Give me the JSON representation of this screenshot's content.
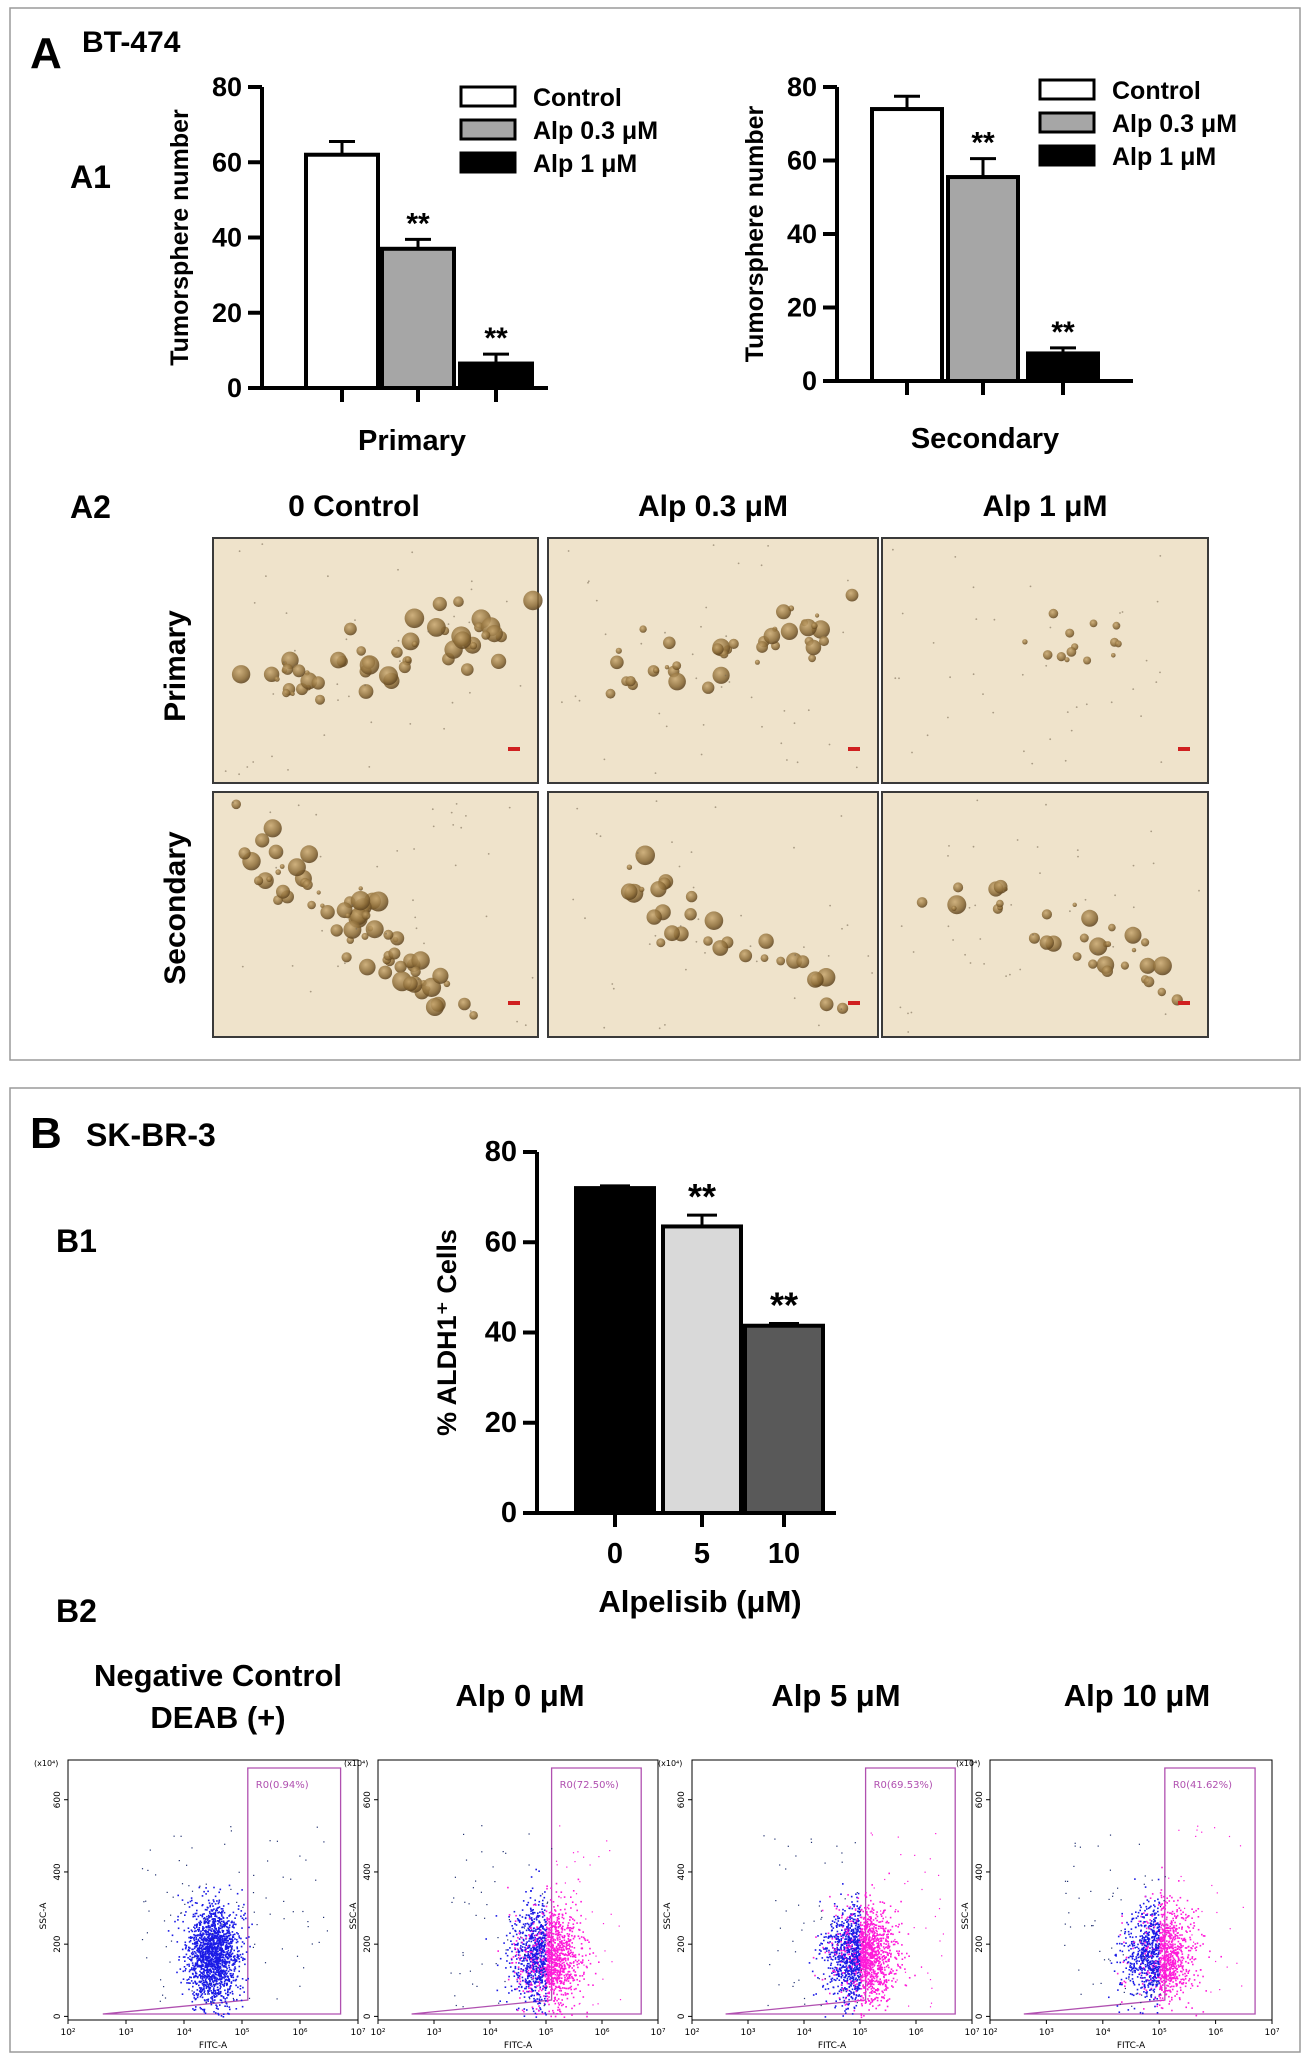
{
  "panel_a": {
    "letter": "A",
    "cell_line": "BT-474",
    "a1_label": "A1",
    "a2_label": "A2",
    "a2_columns": [
      "0 Control",
      "Alp 0.3 μM",
      "Alp 1 μM"
    ],
    "a2_rows": [
      "Primary",
      "Secondary"
    ]
  },
  "panel_b": {
    "letter": "B",
    "cell_line": "SK-BR-3",
    "b1_label": "B1",
    "b2_label": "B2",
    "b2_titles": [
      [
        "Negative Control",
        "DEAB (+)"
      ],
      [
        "Alp 0 μM"
      ],
      [
        "Alp 5 μM"
      ],
      [
        "Alp 10 μM"
      ]
    ],
    "flow_gates": [
      "R0(0.94%)",
      "R0(72.50%)",
      "R0(69.53%)",
      "R0(41.62%)"
    ],
    "flow_axis": {
      "xlabel": "FITC-A",
      "ylabel": "SSC-A",
      "x_ticks": [
        "10²",
        "10³",
        "10⁴",
        "10⁵",
        "10⁶",
        "10⁷"
      ],
      "y_ticks": [
        "0",
        "200",
        "400",
        "600"
      ],
      "y_mult": "(x10⁴)"
    }
  },
  "colors": {
    "control": "#ffffff",
    "alp03": "#a6a6a6",
    "alp1": "#000000",
    "b_0": "#000000",
    "b_5": "#d9d9d9",
    "b_10": "#595959",
    "flow_blue": "#1a1ae6",
    "flow_magenta": "#ff1ad9",
    "gate": "#b050b0",
    "micro_bg": "#efe3cb",
    "sphere": "#8f6f3c",
    "panel_border": "#9a9a9a"
  },
  "chart_data": [
    {
      "id": "A1-primary",
      "type": "bar",
      "xlabel": "Primary",
      "ylabel": "Tumorsphere number",
      "ylim": [
        0,
        80
      ],
      "yticks": [
        0,
        20,
        40,
        60,
        80
      ],
      "categories": [
        "Control",
        "Alp 0.3 μM",
        "Alp 1 μM"
      ],
      "values": [
        62,
        37,
        6.5
      ],
      "errors": [
        3.5,
        2.5,
        2.5
      ],
      "annotations": [
        "",
        "**",
        "**"
      ],
      "legend": [
        "Control",
        "Alp 0.3 μM",
        "Alp 1 μM"
      ],
      "legend_position": "top-right"
    },
    {
      "id": "A1-secondary",
      "type": "bar",
      "xlabel": "Secondary",
      "ylabel": "Tumorsphere number",
      "ylim": [
        0,
        80
      ],
      "yticks": [
        0,
        20,
        40,
        60,
        80
      ],
      "categories": [
        "Control",
        "Alp 0.3 μM",
        "Alp 1 μM"
      ],
      "values": [
        74,
        55.5,
        7.5
      ],
      "errors": [
        3.5,
        5,
        1.5
      ],
      "annotations": [
        "",
        "**",
        "**"
      ],
      "legend": [
        "Control",
        "Alp 0.3 μM",
        "Alp 1 μM"
      ],
      "legend_position": "top-right"
    },
    {
      "id": "B1",
      "type": "bar",
      "xlabel": "Alpelisib (μM)",
      "ylabel": "% ALDH1⁺ Cells",
      "ylim": [
        0,
        80
      ],
      "yticks": [
        0,
        20,
        40,
        60,
        80
      ],
      "categories": [
        "0",
        "5",
        "10"
      ],
      "values": [
        72,
        63.5,
        41.5
      ],
      "errors": [
        0.5,
        2.5,
        0.5
      ],
      "annotations": [
        "",
        "**",
        "**"
      ]
    }
  ]
}
